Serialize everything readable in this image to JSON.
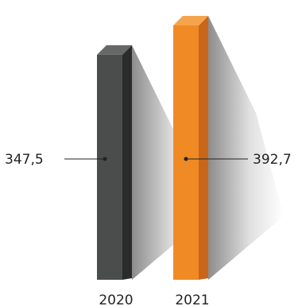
{
  "chart_data": {
    "type": "bar",
    "categories": [
      "2020",
      "2021"
    ],
    "values": [
      347.5,
      392.7
    ],
    "value_labels": [
      "347,5",
      "392,7"
    ],
    "title": "",
    "xlabel": "",
    "ylabel": "",
    "grid": false,
    "legend": "none",
    "colors": {
      "2020": {
        "front": "#4b4c4c",
        "side": "#2a2b2b",
        "top": "#666767"
      },
      "2021": {
        "front": "#f08a24",
        "side": "#c9661a",
        "top": "#f5a44d"
      }
    }
  }
}
